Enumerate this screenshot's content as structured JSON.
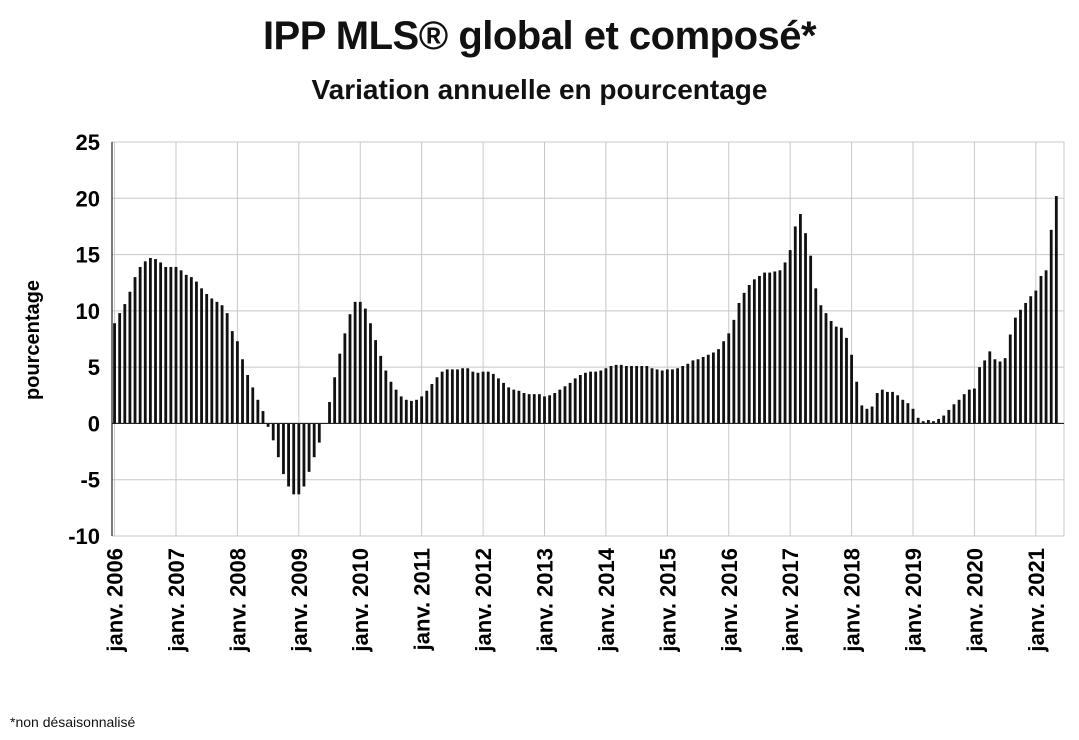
{
  "chart_data": {
    "type": "bar",
    "title": "IPP MLS® global et composé*",
    "subtitle": "Variation annuelle en pourcentage",
    "xlabel": "",
    "ylabel": "pourcentage",
    "ylim": [
      -10,
      25
    ],
    "yticks": [
      25,
      20,
      15,
      10,
      5,
      0,
      -5,
      -10
    ],
    "xticklabels": [
      "janv. 2006",
      "janv. 2007",
      "janv. 2008",
      "janv. 2009",
      "janv. 2010",
      "janv. 2011",
      "janv. 2012",
      "janv. 2013",
      "janv. 2014",
      "janv. 2015",
      "janv. 2016",
      "janv. 2017",
      "janv. 2018",
      "janv. 2019",
      "janv. 2020",
      "janv. 2021"
    ],
    "grid": true,
    "bar_color": "#111111",
    "footnote": "*non désaisonnalisé",
    "series": [
      {
        "values": [
          8.9,
          9.8,
          10.6,
          11.7,
          13.0,
          13.9,
          14.4,
          14.7,
          14.6,
          14.3,
          13.9,
          13.9,
          13.9,
          13.6,
          13.2,
          13.0,
          12.6,
          12.0,
          11.5,
          11.1,
          10.8,
          10.5,
          9.8,
          8.2,
          7.3,
          5.7,
          4.3,
          3.2,
          2.1,
          1.1,
          -0.3,
          -1.5,
          -3.0,
          -4.5,
          -5.6,
          -6.3,
          -6.3,
          -5.6,
          -4.3,
          -3.0,
          -1.7,
          0.0,
          1.9,
          4.1,
          6.2,
          8.0,
          9.7,
          10.8,
          10.8,
          10.2,
          8.9,
          7.4,
          6.0,
          4.7,
          3.7,
          3.0,
          2.4,
          2.1,
          2.0,
          2.1,
          2.4,
          2.9,
          3.5,
          4.1,
          4.6,
          4.8,
          4.8,
          4.8,
          4.9,
          4.9,
          4.6,
          4.5,
          4.6,
          4.6,
          4.4,
          4.0,
          3.6,
          3.2,
          3.0,
          2.9,
          2.7,
          2.6,
          2.6,
          2.6,
          2.4,
          2.5,
          2.7,
          3.0,
          3.3,
          3.6,
          4.0,
          4.3,
          4.5,
          4.6,
          4.6,
          4.7,
          4.9,
          5.1,
          5.2,
          5.2,
          5.1,
          5.1,
          5.1,
          5.1,
          5.1,
          4.9,
          4.8,
          4.7,
          4.8,
          4.8,
          4.9,
          5.1,
          5.3,
          5.6,
          5.7,
          5.9,
          6.1,
          6.3,
          6.6,
          7.3,
          8.0,
          9.2,
          10.7,
          11.6,
          12.3,
          12.8,
          13.1,
          13.4,
          13.4,
          13.5,
          13.6,
          14.3,
          15.4,
          17.5,
          18.6,
          16.9,
          14.9,
          12.0,
          10.5,
          9.8,
          9.1,
          8.6,
          8.5,
          7.6,
          6.1,
          3.7,
          1.6,
          1.3,
          1.5,
          2.7,
          3.0,
          2.8,
          2.8,
          2.5,
          2.1,
          1.8,
          1.3,
          0.5,
          0.2,
          0.3,
          0.2,
          0.4,
          0.7,
          1.2,
          1.7,
          2.1,
          2.6,
          3.0,
          3.1,
          5.0,
          5.6,
          6.4,
          5.7,
          5.5,
          5.8,
          7.9,
          9.4,
          10.1,
          10.7,
          11.3,
          11.8,
          13.1,
          13.6,
          17.2,
          20.2
        ]
      }
    ]
  }
}
